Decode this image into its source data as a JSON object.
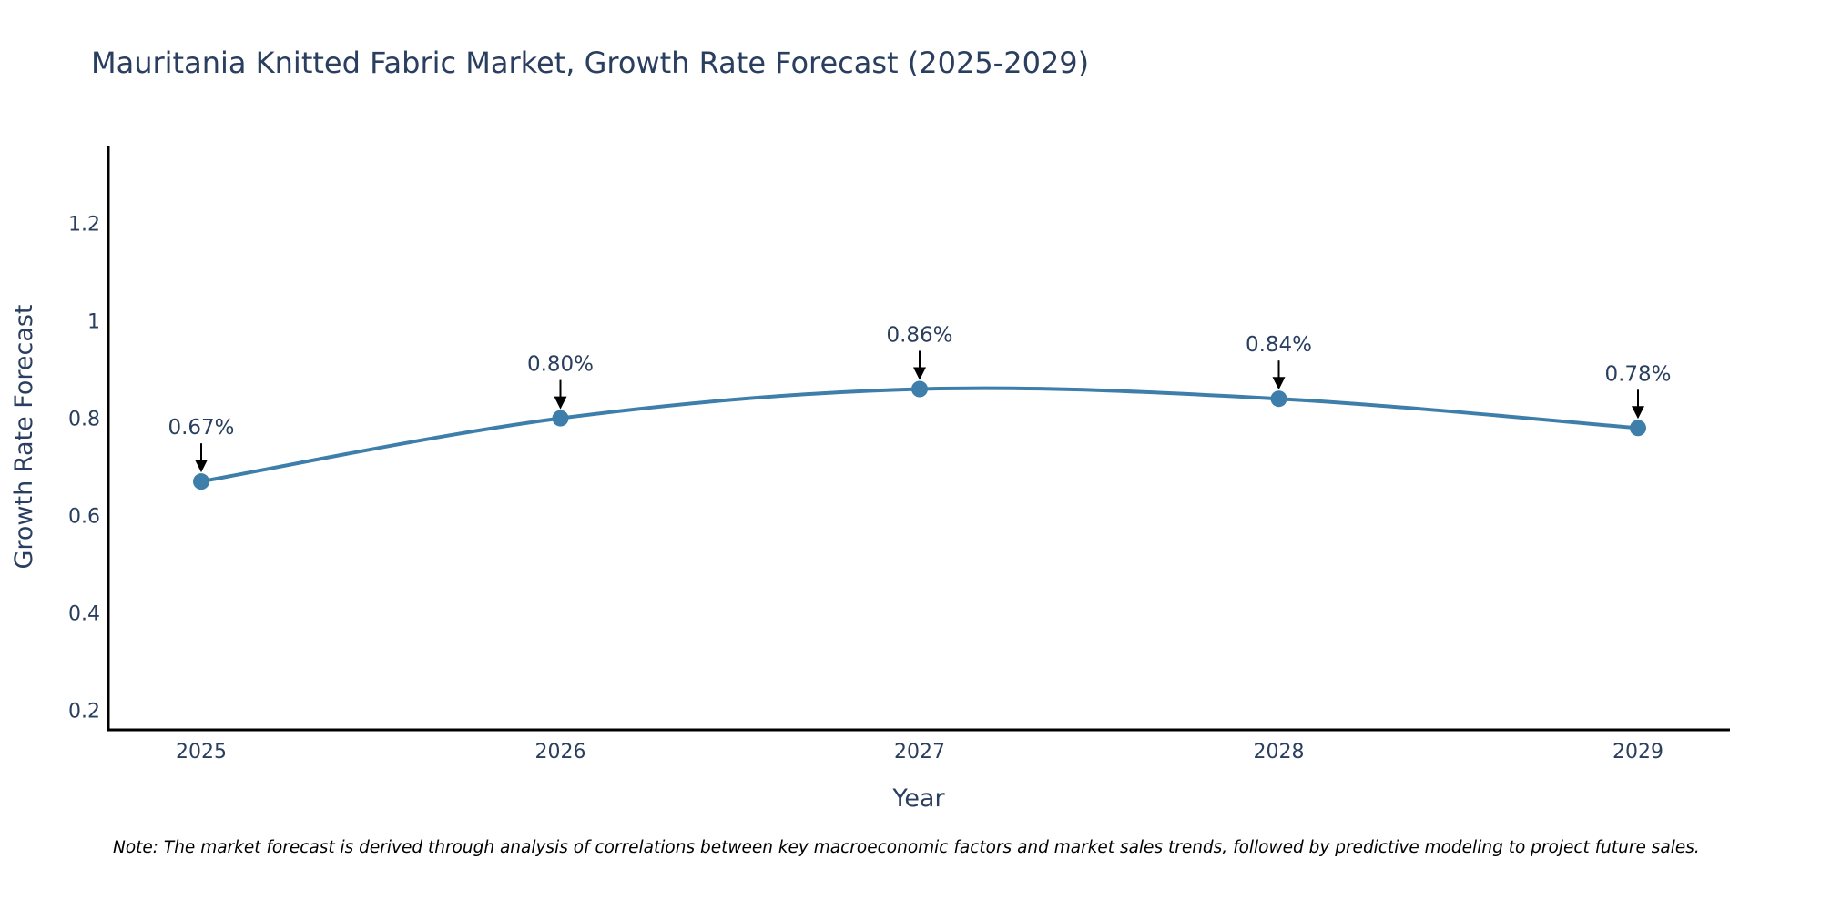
{
  "chart_data": {
    "type": "line",
    "title": "Mauritania Knitted Fabric Market, Growth Rate Forecast (2025-2029)",
    "xlabel": "Year",
    "ylabel": "Growth Rate Forecast",
    "categories": [
      "2025",
      "2026",
      "2027",
      "2028",
      "2029"
    ],
    "values": [
      0.67,
      0.8,
      0.86,
      0.84,
      0.78
    ],
    "data_labels": [
      "0.67%",
      "0.80%",
      "0.86%",
      "0.84%",
      "0.78%"
    ],
    "y_ticks": [
      0.2,
      0.4,
      0.6,
      0.8,
      1,
      1.2
    ],
    "y_tick_labels": [
      "0.2",
      "0.4",
      "0.6",
      "0.8",
      "1",
      "1.2"
    ],
    "ylim": [
      0.16,
      1.36
    ],
    "grid": false,
    "line_color": "#3d7eaa",
    "marker_color": "#3d7eaa",
    "note": "Note: The market forecast is derived through analysis of correlations between key macroeconomic factors and market sales trends, followed by predictive modeling to project future sales."
  }
}
